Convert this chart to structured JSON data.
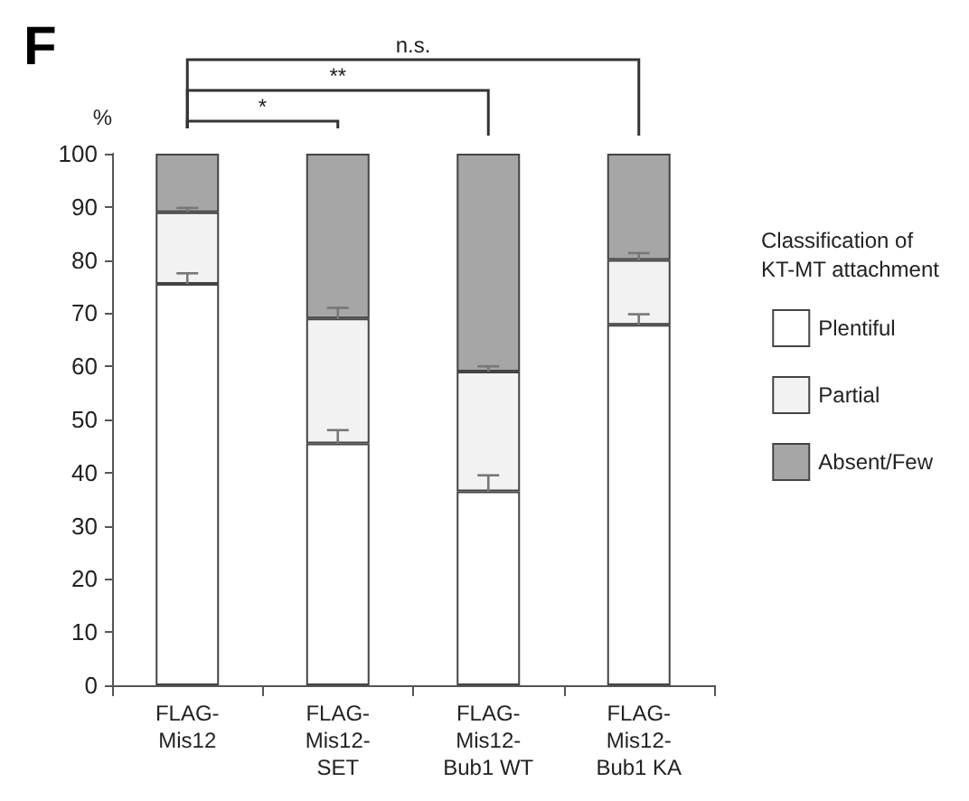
{
  "chart_data": {
    "type": "bar",
    "stacked": true,
    "title": "F",
    "ylabel": "%",
    "legend_title": "Classification of\nKT-MT attachment",
    "categories": [
      "FLAG-\nMis12",
      "FLAG-\nMis12-\nSET",
      "FLAG-\nMis12-\nBub1 WT",
      "FLAG-\nMis12-\nBub1 KA"
    ],
    "series": [
      {
        "name": "Plentiful",
        "color": "#ffffff",
        "values": [
          75.5,
          45.5,
          36.5,
          67.8
        ],
        "errors": [
          [
            75.5,
            77.5
          ],
          [
            45.5,
            48
          ],
          [
            36.5,
            39.5
          ],
          [
            67.8,
            69.8
          ]
        ]
      },
      {
        "name": "Partial",
        "color": "#f2f2f2",
        "values": [
          13.5,
          23.5,
          22.5,
          12.2
        ],
        "errors": [
          [
            89,
            89.8
          ],
          [
            69,
            71
          ],
          [
            59,
            60
          ],
          [
            80,
            81.3
          ]
        ]
      },
      {
        "name": "Absent/Few",
        "color": "#a6a6a6",
        "values": [
          11,
          31,
          41,
          20
        ]
      }
    ],
    "ylim": [
      0,
      100
    ],
    "yticks": [
      0,
      10,
      20,
      30,
      40,
      50,
      60,
      70,
      80,
      90,
      100
    ],
    "grid": false,
    "legend": "right",
    "annotations": [
      "*",
      "**",
      "n.s."
    ]
  }
}
